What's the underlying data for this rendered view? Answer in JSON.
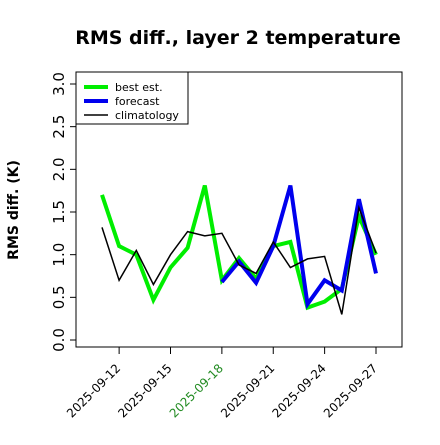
{
  "chart_data": {
    "type": "line",
    "title": "RMS diff., layer 2 temperature",
    "ylabel": "RMS diff. (K)",
    "xlabel": "",
    "ylim": [
      0.0,
      3.0
    ],
    "yticks": [
      "0.0",
      "0.5",
      "1.0",
      "1.5",
      "2.0",
      "2.5",
      "3.0"
    ],
    "x": [
      "2025-09-11",
      "2025-09-12",
      "2025-09-13",
      "2025-09-14",
      "2025-09-15",
      "2025-09-16",
      "2025-09-17",
      "2025-09-18",
      "2025-09-19",
      "2025-09-20",
      "2025-09-21",
      "2025-09-22",
      "2025-09-23",
      "2025-09-24",
      "2025-09-25",
      "2025-09-26",
      "2025-09-27"
    ],
    "xticks": [
      "2025-09-12",
      "2025-09-15",
      "2025-09-18",
      "2025-09-21",
      "2025-09-24",
      "2025-09-27"
    ],
    "highlight_tick": "2025-09-18",
    "highlight_color": "#228b22",
    "grid": false,
    "legend_position": "top-left",
    "series": [
      {
        "name": "best est.",
        "color": "#00ee00",
        "width": 4,
        "values": [
          1.7,
          1.1,
          1.0,
          0.47,
          0.85,
          1.08,
          1.81,
          0.7,
          0.96,
          0.72,
          1.1,
          1.15,
          0.38,
          0.45,
          0.6,
          1.45,
          1.0
        ]
      },
      {
        "name": "forecast",
        "color": "#0000ee",
        "width": 4,
        "values": [
          null,
          null,
          null,
          null,
          null,
          null,
          null,
          0.68,
          0.92,
          0.67,
          1.1,
          1.81,
          0.42,
          0.7,
          0.58,
          1.65,
          0.78
        ]
      },
      {
        "name": "climatology",
        "color": "#000000",
        "width": 1.5,
        "values": [
          1.32,
          0.7,
          1.05,
          0.65,
          1.0,
          1.27,
          1.22,
          1.25,
          0.88,
          0.78,
          1.15,
          0.85,
          0.95,
          0.98,
          0.3,
          1.55,
          1.02
        ]
      }
    ]
  }
}
